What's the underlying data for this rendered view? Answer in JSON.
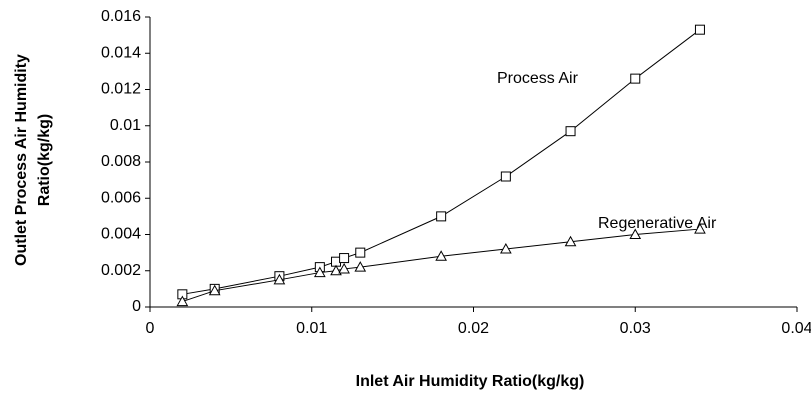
{
  "chart_data": {
    "type": "line",
    "xlabel": "Inlet Air Humidity Ratio(kg/kg)",
    "ylabel": [
      "Outlet Process Air Humidity",
      "Ratio(kg/kg)"
    ],
    "xlim": [
      0,
      0.04
    ],
    "xticks": [
      0,
      0.01,
      0.02,
      0.03,
      0.04
    ],
    "ylim": [
      0,
      0.016
    ],
    "yticks": [
      0,
      0.002,
      0.004,
      0.006,
      0.008,
      0.01,
      0.012,
      0.014,
      0.016
    ],
    "series": [
      {
        "name": "Process Air",
        "color": "#000000",
        "marker": "square",
        "x": [
          0.002,
          0.004,
          0.008,
          0.0105,
          0.0115,
          0.012,
          0.013,
          0.018,
          0.022,
          0.026,
          0.03,
          0.034
        ],
        "values": [
          0.0007,
          0.001,
          0.0017,
          0.0022,
          0.0025,
          0.0027,
          0.003,
          0.005,
          0.0072,
          0.0097,
          0.0126,
          0.0153
        ]
      },
      {
        "name": "Regenerative Air",
        "color": "#000000",
        "marker": "triangle",
        "x": [
          0.002,
          0.004,
          0.008,
          0.0105,
          0.0115,
          0.012,
          0.013,
          0.018,
          0.022,
          0.026,
          0.03,
          0.034
        ],
        "values": [
          0.0003,
          0.0009,
          0.0015,
          0.0019,
          0.002,
          0.0021,
          0.0022,
          0.0028,
          0.0032,
          0.0036,
          0.004,
          0.0043
        ]
      }
    ]
  }
}
